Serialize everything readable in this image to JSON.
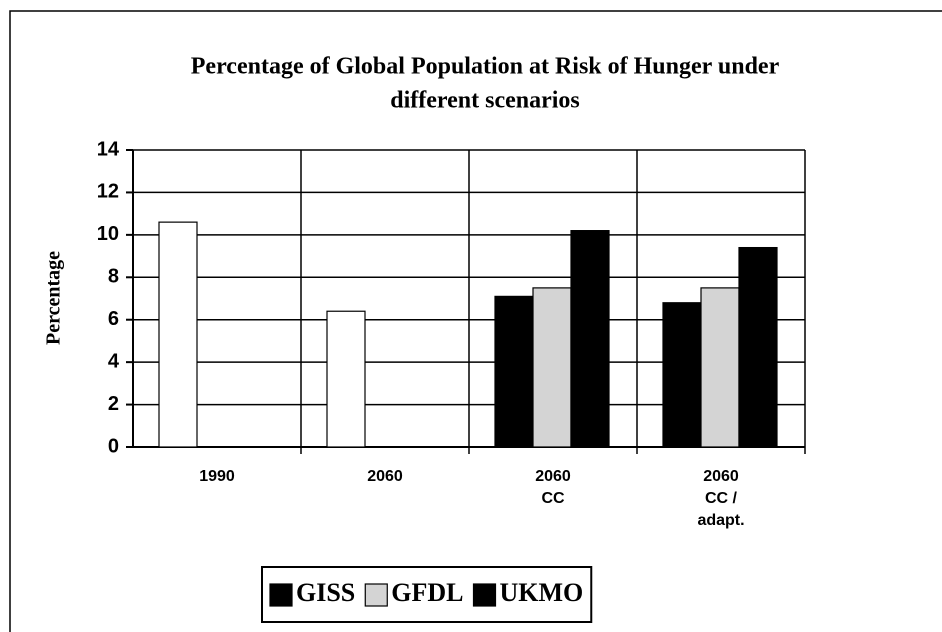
{
  "chart_data": {
    "type": "bar",
    "title": [
      "Percentage of Global Population at Risk of Hunger under",
      "different scenarios"
    ],
    "y_label": "Percentage",
    "categories": [
      [
        "1990"
      ],
      [
        "2060"
      ],
      [
        "2060",
        "CC"
      ],
      [
        "2060",
        "CC /",
        "adapt."
      ]
    ],
    "series": [
      {
        "name": "GISS",
        "color": "#000000",
        "point_colors": [
          "#ffffff",
          "#ffffff",
          "#000000",
          "#000000"
        ],
        "values": [
          10.6,
          6.4,
          7.1,
          6.8
        ]
      },
      {
        "name": "GFDL",
        "color": "#d4d4d4",
        "values": [
          null,
          null,
          7.5,
          7.5
        ]
      },
      {
        "name": "UKMO",
        "color": "#000000",
        "values": [
          null,
          null,
          10.2,
          9.4
        ]
      }
    ],
    "ylim": [
      0,
      14
    ],
    "yticks": [
      0,
      2,
      4,
      6,
      8,
      10,
      12,
      14
    ],
    "grid": true,
    "legend": "bottom"
  }
}
